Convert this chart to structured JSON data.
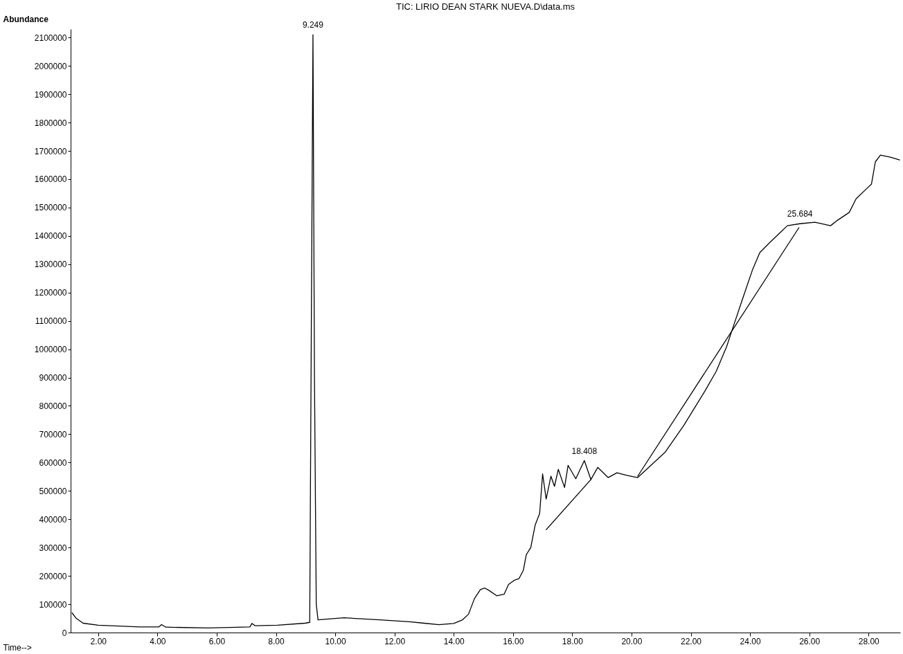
{
  "chart_data": {
    "type": "line",
    "title": "TIC: LIRIO DEAN STARK NUEVA.D\\data.ms",
    "xlabel": "Time-->",
    "ylabel": "Abundance",
    "xlim": [
      1.07,
      29.07
    ],
    "ylim": [
      0,
      2130000
    ],
    "xticks": [
      {
        "value": 2,
        "label": "2.00"
      },
      {
        "value": 4,
        "label": "4.00"
      },
      {
        "value": 6,
        "label": "6.00"
      },
      {
        "value": 8,
        "label": "8.00"
      },
      {
        "value": 10,
        "label": "10.00"
      },
      {
        "value": 12,
        "label": "12.00"
      },
      {
        "value": 14,
        "label": "14.00"
      },
      {
        "value": 16,
        "label": "16.00"
      },
      {
        "value": 18,
        "label": "18.00"
      },
      {
        "value": 20,
        "label": "20.00"
      },
      {
        "value": 22,
        "label": "22.00"
      },
      {
        "value": 24,
        "label": "24.00"
      },
      {
        "value": 26,
        "label": "26.00"
      },
      {
        "value": 28,
        "label": "28.00"
      }
    ],
    "yticks": [
      0,
      100000,
      200000,
      300000,
      400000,
      500000,
      600000,
      700000,
      800000,
      900000,
      1000000,
      1100000,
      1200000,
      1300000,
      1400000,
      1500000,
      1600000,
      1700000,
      1800000,
      1900000,
      2000000,
      2100000
    ],
    "grid": false,
    "series": [
      {
        "color": "#000000",
        "x": [
          1.12,
          1.26,
          1.49,
          2.0,
          3.4,
          4.05,
          4.14,
          4.28,
          5.72,
          7.12,
          7.19,
          7.3,
          8.05,
          8.98,
          9.14,
          9.2,
          9.249,
          9.3,
          9.36,
          9.42,
          10.3,
          11.5,
          12.5,
          13.0,
          13.5,
          14.0,
          14.3,
          14.5,
          14.7,
          14.9,
          15.05,
          15.2,
          15.45,
          15.7,
          15.85,
          16.05,
          16.2,
          16.35,
          16.45,
          16.6,
          16.75,
          16.9,
          17.0,
          17.12,
          17.28,
          17.4,
          17.53,
          17.74,
          17.86,
          18.12,
          18.408,
          18.63,
          18.86,
          19.21,
          19.51,
          19.84,
          20.21,
          21.14,
          21.77,
          22.47,
          22.86,
          23.21,
          23.4,
          23.74,
          24.09,
          24.33,
          24.67,
          25.02,
          25.26,
          25.684,
          26.19,
          26.72,
          26.95,
          27.35,
          27.58,
          27.93,
          28.1,
          28.23,
          28.4,
          28.74,
          29.05
        ],
        "values": [
          69000,
          50000,
          33000,
          26000,
          20000,
          20000,
          28000,
          19000,
          16000,
          20000,
          32000,
          24000,
          26000,
          33000,
          36000,
          1200000,
          2110000,
          900000,
          100000,
          45000,
          52000,
          45000,
          38000,
          33000,
          28000,
          32000,
          45000,
          65000,
          120000,
          152000,
          157000,
          148000,
          130000,
          135000,
          170000,
          185000,
          190000,
          220000,
          275000,
          300000,
          380000,
          420000,
          560000,
          471000,
          552000,
          516000,
          576000,
          512000,
          590000,
          543000,
          607000,
          540000,
          583000,
          547000,
          564000,
          555000,
          547000,
          637000,
          732000,
          851000,
          922000,
          1009000,
          1069000,
          1175000,
          1282000,
          1341000,
          1377000,
          1412000,
          1436000,
          1443000,
          1448000,
          1436000,
          1455000,
          1483000,
          1531000,
          1566000,
          1583000,
          1661000,
          1685000,
          1678000,
          1668000
        ]
      },
      {
        "type": "line",
        "color": "#000000",
        "x": [
          17.12,
          18.63
        ],
        "values": [
          363000,
          540000
        ]
      },
      {
        "type": "line",
        "color": "#000000",
        "x": [
          20.21,
          25.65
        ],
        "values": [
          552000,
          1429000
        ]
      }
    ],
    "annotations": [
      {
        "text": "9.249",
        "x": 9.249,
        "y": 2110000
      },
      {
        "text": "18.408",
        "x": 18.408,
        "y": 607000
      },
      {
        "text": "25.684",
        "x": 25.684,
        "y": 1443000
      }
    ]
  }
}
